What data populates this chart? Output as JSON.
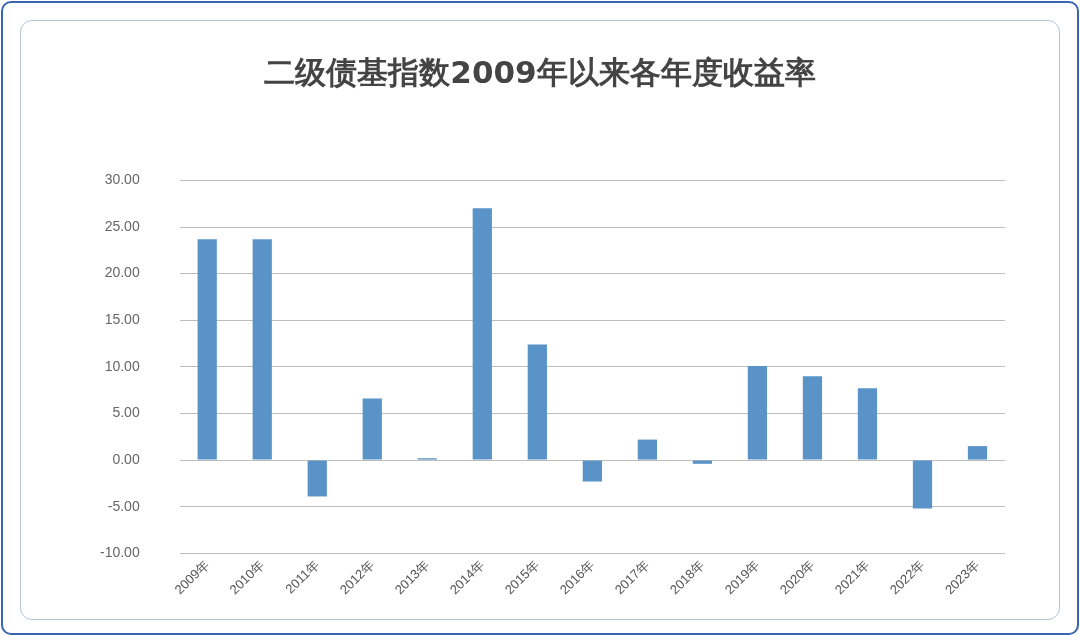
{
  "chart_data": {
    "type": "bar",
    "title": "二级债基指数2009年以来各年度收益率",
    "categories": [
      "2009年",
      "2010年",
      "2011年",
      "2012年",
      "2013年",
      "2014年",
      "2015年",
      "2016年",
      "2017年",
      "2018年",
      "2019年",
      "2020年",
      "2021年",
      "2022年",
      "2023年"
    ],
    "values": [
      23.7,
      23.7,
      -3.9,
      6.6,
      0.2,
      27.0,
      12.4,
      -2.3,
      2.2,
      -0.4,
      10.1,
      9.0,
      7.7,
      -5.2,
      1.5
    ],
    "color": "#5a93c8",
    "ylim": [
      -10,
      30
    ],
    "yticks": [
      {
        "value": -10,
        "label": "-10.00"
      },
      {
        "value": -5,
        "label": "-5.00"
      },
      {
        "value": 0,
        "label": "0.00"
      },
      {
        "value": 5,
        "label": "5.00"
      },
      {
        "value": 10,
        "label": "10.00"
      },
      {
        "value": 15,
        "label": "15.00"
      },
      {
        "value": 20,
        "label": "20.00"
      },
      {
        "value": 25,
        "label": "25.00"
      },
      {
        "value": 30,
        "label": "30.00"
      }
    ],
    "grid": "y"
  }
}
